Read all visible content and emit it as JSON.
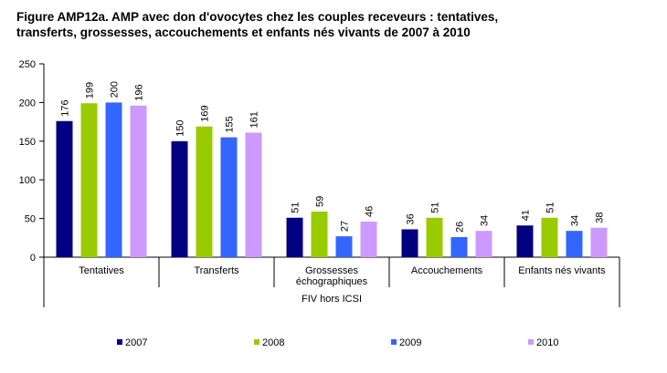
{
  "title_lines": [
    "Figure AMP12a. AMP avec don d'ovocytes chez les couples receveurs : tentatives,",
    "transferts, grossesses, accouchements et enfants nés vivants de  2007 à 2010"
  ],
  "chart_data": {
    "type": "bar",
    "title": "Figure AMP12a. AMP avec don d'ovocytes chez les couples receveurs : tentatives, transferts, grossesses, accouchements et enfants nés vivants de  2007 à 2010",
    "categories": [
      "Tentatives",
      "Transferts",
      "Grossesses échographiques",
      "Accouchements",
      "Enfants nés vivants"
    ],
    "category_label_lines": [
      [
        "Tentatives"
      ],
      [
        "Transferts"
      ],
      [
        "Grossesses",
        "échographiques"
      ],
      [
        "Accouchements"
      ],
      [
        "Enfants nés vivants"
      ]
    ],
    "group_label": "FIV hors ICSI",
    "series": [
      {
        "name": "2007",
        "color": "#000080",
        "values": [
          176,
          150,
          51,
          36,
          41
        ]
      },
      {
        "name": "2008",
        "color": "#99CC00",
        "values": [
          199,
          169,
          59,
          51,
          51
        ]
      },
      {
        "name": "2009",
        "color": "#3366FF",
        "values": [
          200,
          155,
          27,
          26,
          34
        ]
      },
      {
        "name": "2010",
        "color": "#CC99FF",
        "values": [
          196,
          161,
          46,
          34,
          38
        ]
      }
    ],
    "ylim": [
      0,
      250
    ],
    "yticks": [
      0,
      50,
      100,
      150,
      200,
      250
    ],
    "xlabel": "",
    "ylabel": "",
    "grid": false,
    "legend_position": "bottom"
  }
}
